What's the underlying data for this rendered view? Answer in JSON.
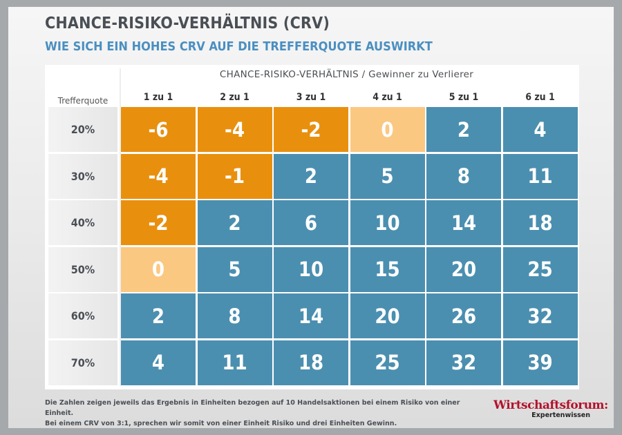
{
  "title": "CHANCE-RISIKO-VERHÄLTNIS (CRV)",
  "subtitle": "WIE SICH EIN HOHES CRV AUF DIE TREFFERQUOTE AUSWIRKT",
  "chart_data": {
    "type": "heatmap",
    "column_header": "CHANCE-RISIKO-VERHÄLTNIS / Gewinner zu Verlierer",
    "row_header": "Trefferquote",
    "columns": [
      "1 zu 1",
      "2 zu 1",
      "3 zu 1",
      "4 zu 1",
      "5 zu 1",
      "6 zu 1"
    ],
    "rows": [
      "20%",
      "30%",
      "40%",
      "50%",
      "60%",
      "70%"
    ],
    "values": [
      [
        -6,
        -4,
        -2,
        0,
        2,
        4
      ],
      [
        -4,
        -1,
        2,
        5,
        8,
        11
      ],
      [
        -2,
        2,
        6,
        10,
        14,
        18
      ],
      [
        0,
        5,
        10,
        15,
        20,
        25
      ],
      [
        2,
        8,
        14,
        20,
        26,
        32
      ],
      [
        4,
        11,
        18,
        25,
        32,
        39
      ]
    ],
    "colors": {
      "negative": "#e8900e",
      "zero": "#fbc882",
      "positive": "#4b8fb0"
    }
  },
  "footnote": {
    "line1": "Die Zahlen zeigen jeweils das Ergebnis in Einheiten bezogen auf 10 Handelsaktionen bei einem Risiko von einer Einheit.",
    "line2": "Bei einem CRV von 3:1, sprechen wir somit von einer Einheit Risiko und drei Einheiten Gewinn."
  },
  "logo": {
    "main": "Wirtschaftsforum:",
    "sub": "Expertenwissen"
  }
}
